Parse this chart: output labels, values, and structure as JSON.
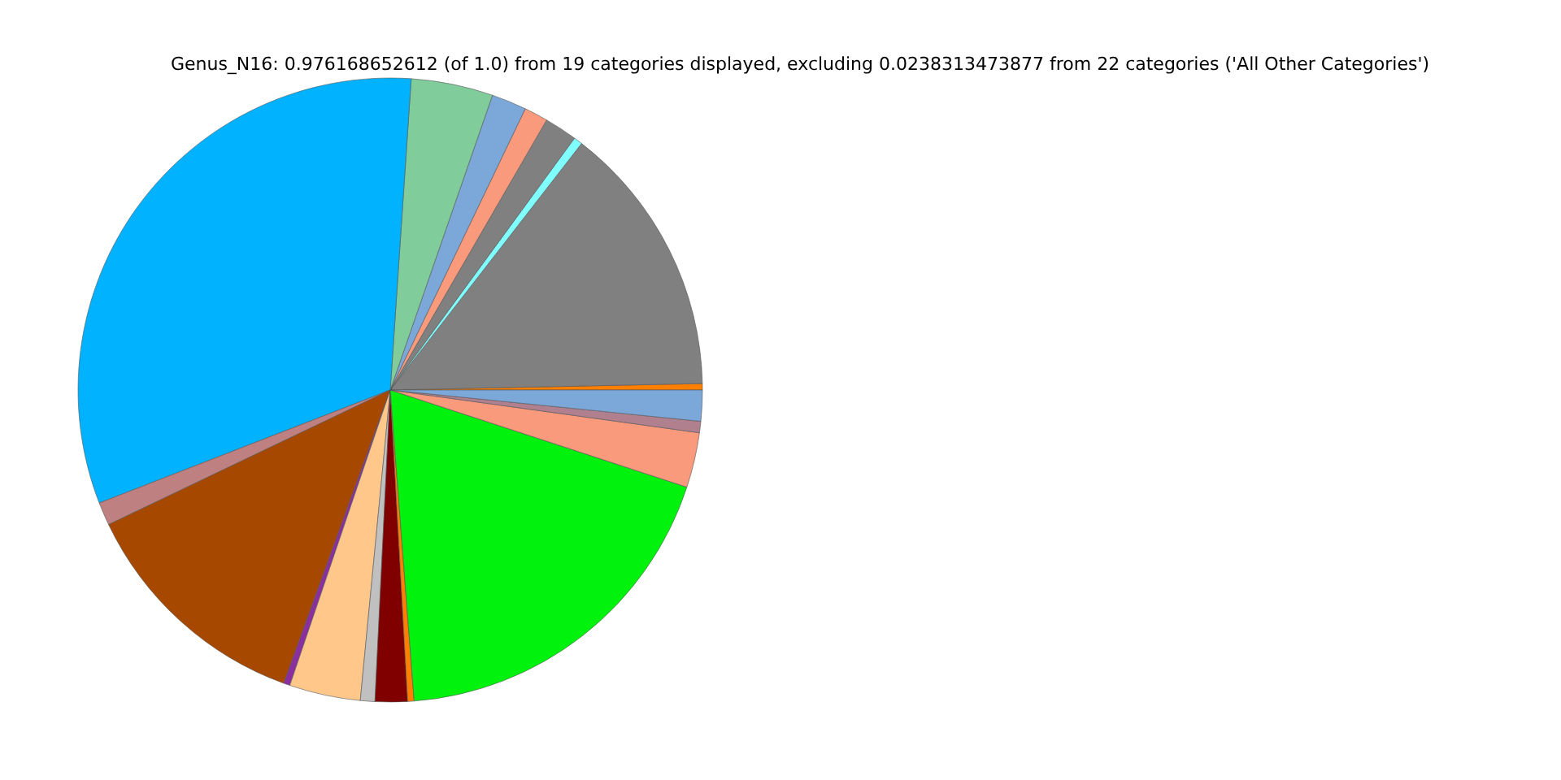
{
  "chart_data": {
    "type": "pie",
    "title": "Genus_N16: 0.976168652612 (of 1.0) from 19 categories displayed, excluding 0.0238313473877 from 22 categories ('All Other Categories')",
    "categories": [
      null,
      null,
      null,
      null,
      null,
      null,
      null,
      null,
      null,
      null,
      null,
      null,
      null,
      null,
      null,
      null,
      null,
      null,
      null
    ],
    "values": [
      0.33,
      14.17,
      0.45,
      1.7,
      1.23,
      1.81,
      4.24,
      31.97,
      1.2,
      12.36,
      0.33,
      3.68,
      0.75,
      1.67,
      0.33,
      18.74,
      2.85,
      0.59,
      1.6
    ],
    "colors": [
      "#ff7f00",
      "#808080",
      "#80ffff",
      "#808080",
      "#fa9a7c",
      "#7ba7d9",
      "#80cc9a",
      "#00b2ff",
      "#be8080",
      "#a64800",
      "#8b2fa0",
      "#ffc88a",
      "#c0c0c0",
      "#800000",
      "#ff8000",
      "#00f20d",
      "#fa9a7c",
      "#b0808f",
      "#7ba7d9"
    ]
  }
}
